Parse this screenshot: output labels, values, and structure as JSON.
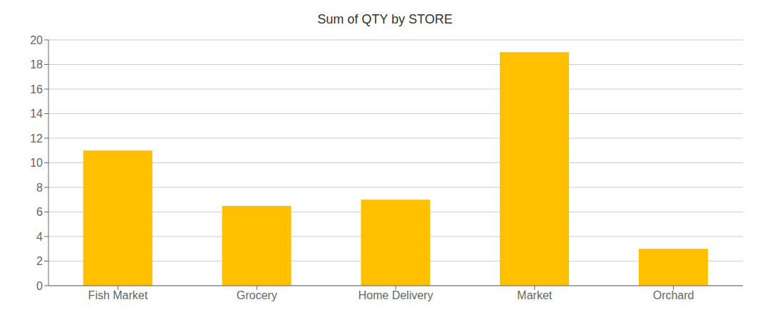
{
  "chart_data": {
    "type": "bar",
    "title": "Sum of QTY by STORE",
    "categories": [
      "Fish  Market",
      "Grocery",
      "Home  Delivery",
      "Market",
      "Orchard"
    ],
    "values": [
      11,
      6.5,
      7,
      19,
      3
    ],
    "color": "#FFC000",
    "ylim": [
      0,
      20
    ],
    "yticks": [
      0,
      2,
      4,
      6,
      8,
      10,
      12,
      14,
      16,
      18,
      20
    ],
    "grid": true
  }
}
